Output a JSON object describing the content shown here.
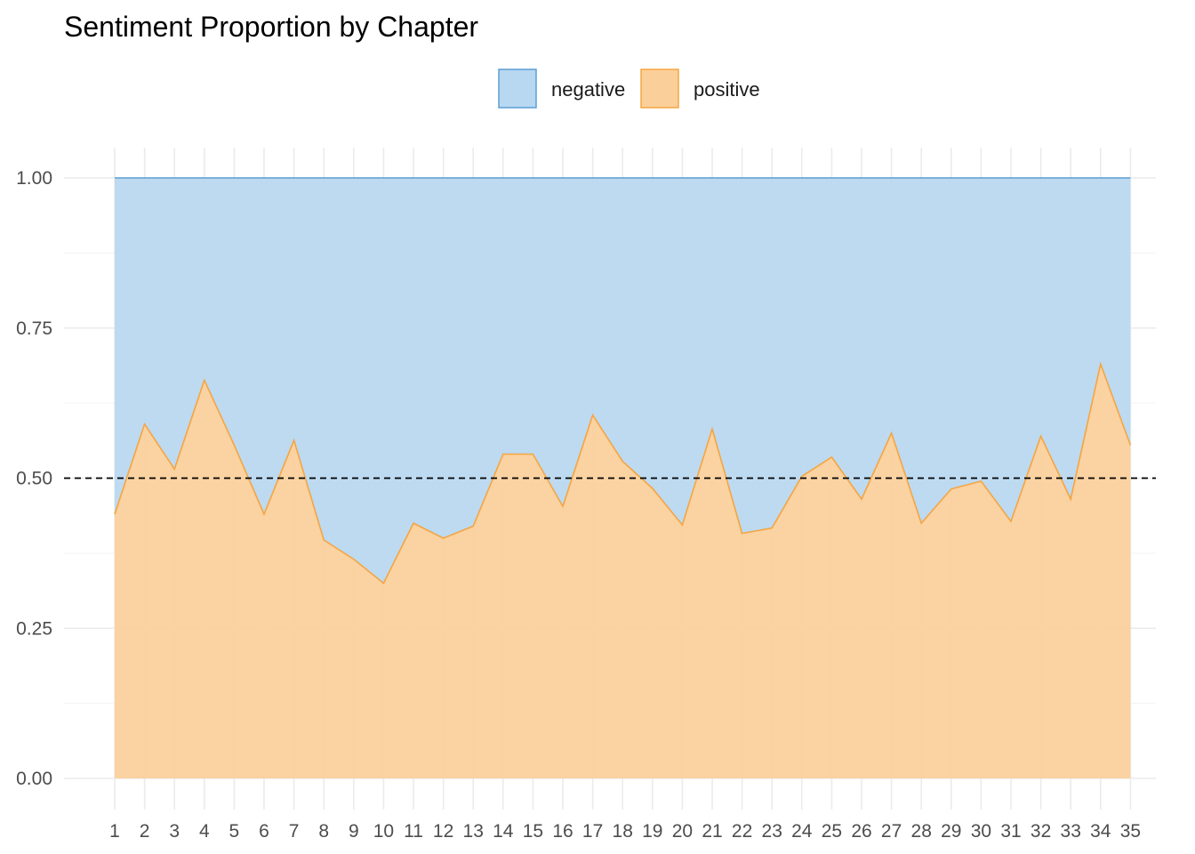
{
  "chart_data": {
    "type": "area",
    "title": "Sentiment Proportion by Chapter",
    "xlabel": "",
    "ylabel": "",
    "x": [
      1,
      2,
      3,
      4,
      5,
      6,
      7,
      8,
      9,
      10,
      11,
      12,
      13,
      14,
      15,
      16,
      17,
      18,
      19,
      20,
      21,
      22,
      23,
      24,
      25,
      26,
      27,
      28,
      29,
      30,
      31,
      32,
      33,
      34,
      35
    ],
    "xticks": [
      "1",
      "2",
      "3",
      "4",
      "5",
      "6",
      "7",
      "8",
      "9",
      "10",
      "11",
      "12",
      "13",
      "14",
      "15",
      "16",
      "17",
      "18",
      "19",
      "20",
      "21",
      "22",
      "23",
      "24",
      "25",
      "26",
      "27",
      "28",
      "29",
      "30",
      "31",
      "32",
      "33",
      "34",
      "35"
    ],
    "yticks": [
      "0.00",
      "0.25",
      "0.50",
      "0.75",
      "1.00"
    ],
    "ylim": [
      0,
      1
    ],
    "stacked": true,
    "reference_line": {
      "y": 0.5,
      "style": "dashed",
      "color": "#000000"
    },
    "legend_position": "top-center",
    "series": [
      {
        "name": "negative",
        "color": "#b8d7f0",
        "line_color": "#5b9fd4",
        "values": [
          0.56,
          0.41,
          0.485,
          0.337,
          0.445,
          0.56,
          0.437,
          0.603,
          0.635,
          0.675,
          0.575,
          0.6,
          0.58,
          0.46,
          0.46,
          0.547,
          0.395,
          0.472,
          0.517,
          0.578,
          0.418,
          0.592,
          0.583,
          0.497,
          0.465,
          0.535,
          0.425,
          0.575,
          0.518,
          0.505,
          0.572,
          0.43,
          0.535,
          0.31,
          0.445
        ]
      },
      {
        "name": "positive",
        "color": "#fbcf9a",
        "line_color": "#f5a541",
        "values": [
          0.44,
          0.59,
          0.515,
          0.663,
          0.555,
          0.44,
          0.563,
          0.397,
          0.365,
          0.325,
          0.425,
          0.4,
          0.42,
          0.54,
          0.54,
          0.453,
          0.605,
          0.528,
          0.483,
          0.422,
          0.582,
          0.408,
          0.417,
          0.503,
          0.535,
          0.465,
          0.575,
          0.425,
          0.482,
          0.495,
          0.428,
          0.57,
          0.465,
          0.69,
          0.555
        ]
      }
    ]
  }
}
